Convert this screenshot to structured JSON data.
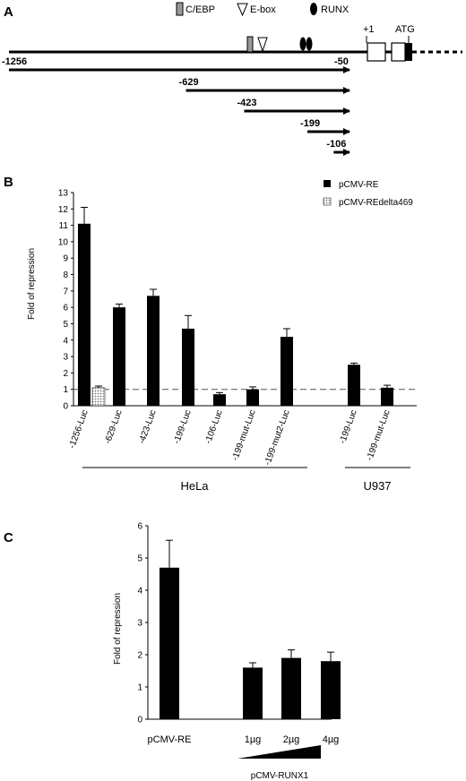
{
  "panelA": {
    "label": "A",
    "legend": {
      "cebp": "C/EBP",
      "ebox": "E-box",
      "runx": "RUNX"
    },
    "tss_label": "+1",
    "atg_label": "ATG",
    "constructs": [
      {
        "start": -1256,
        "end": -50,
        "start_label": "-1256",
        "end_label": "-50"
      },
      {
        "start": -629,
        "end": -50,
        "start_label": "-629",
        "end_label": ""
      },
      {
        "start": -423,
        "end": -50,
        "start_label": "-423",
        "end_label": ""
      },
      {
        "start": -199,
        "end": -50,
        "start_label": "-199",
        "end_label": ""
      },
      {
        "start": -106,
        "end": -50,
        "start_label": "-106",
        "end_label": ""
      }
    ]
  },
  "panelB": {
    "label": "B",
    "hela_label": "HeLa",
    "u937_label": "U937",
    "colors": {
      "pcmv_re": "#000000",
      "pcmv_redelta469": "#d9d9d9"
    }
  },
  "panelC": {
    "label": "C",
    "group_label": "pCMV-RUNX1"
  },
  "chart_data": [
    {
      "type": "bar",
      "ylabel": "Fold of repression",
      "ylim": [
        0,
        13
      ],
      "yticks": [
        0,
        1,
        2,
        3,
        4,
        5,
        6,
        7,
        8,
        9,
        10,
        11,
        12,
        13
      ],
      "reference_line": 1,
      "categories": [
        "-1256-Luc",
        "-629-Luc",
        "-423-Luc",
        "-199-Luc",
        "-106-Luc",
        "-199-mut-Luc",
        "-199-mut2-Luc",
        "-199-Luc",
        "-199-mut-Luc"
      ],
      "series": [
        {
          "name": "pCMV-RE",
          "values": [
            11.1,
            6.0,
            6.7,
            4.7,
            0.7,
            1.0,
            4.2,
            2.5,
            1.1
          ],
          "errors": [
            1.0,
            0.2,
            0.4,
            0.8,
            0.1,
            0.15,
            0.5,
            0.1,
            0.15
          ]
        },
        {
          "name": "pCMV-REdelta469",
          "values": [
            1.1,
            null,
            null,
            null,
            null,
            null,
            null,
            null,
            null
          ],
          "errors": [
            0.1,
            null,
            null,
            null,
            null,
            null,
            null,
            null,
            null
          ]
        }
      ]
    },
    {
      "type": "bar",
      "ylabel": "Fold of repression",
      "ylim": [
        0,
        6
      ],
      "yticks": [
        0,
        1,
        2,
        3,
        4,
        5,
        6
      ],
      "categories": [
        "pCMV-RE",
        "1µg",
        "2µg",
        "4µg"
      ],
      "values": [
        4.7,
        1.6,
        1.9,
        1.8
      ],
      "errors": [
        0.85,
        0.15,
        0.25,
        0.28
      ]
    }
  ]
}
